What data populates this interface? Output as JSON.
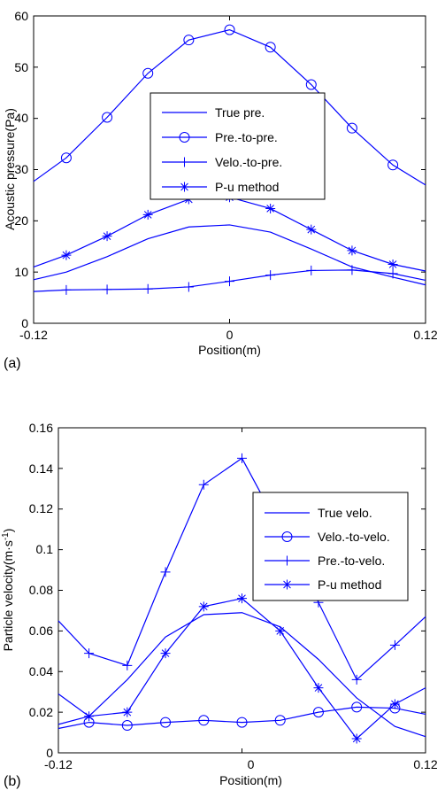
{
  "style": {
    "line_color": "#0000ff",
    "axis_color": "#000000"
  },
  "chart_data": [
    {
      "type": "line",
      "panel_label": "(a)",
      "xlabel": "Position(m)",
      "ylabel": "Acoustic pressure(Pa)",
      "xlim": [
        -0.12,
        0.12
      ],
      "ylim": [
        0,
        60
      ],
      "x_ticks": [
        -0.12,
        0,
        0.12
      ],
      "x_tick_labels": [
        "-0.12",
        "0",
        "0.12"
      ],
      "y_ticks": [
        0,
        10,
        20,
        30,
        40,
        50,
        60
      ],
      "y_tick_labels": [
        "0",
        "10",
        "20",
        "30",
        "40",
        "50",
        "60"
      ],
      "grid": false,
      "legend_position": "center",
      "series": [
        {
          "name": "True pre.",
          "marker": "none",
          "x": [
            -0.12,
            -0.1,
            -0.075,
            -0.05,
            -0.025,
            0,
            0.025,
            0.05,
            0.075,
            0.1,
            0.12
          ],
          "y": [
            8.5,
            10,
            13,
            16.5,
            18.8,
            19.2,
            17.8,
            14.5,
            11,
            9,
            7.5
          ]
        },
        {
          "name": "Pre.-to-pre.",
          "marker": "circle",
          "x": [
            -0.12,
            -0.1,
            -0.075,
            -0.05,
            -0.025,
            0,
            0.025,
            0.05,
            0.075,
            0.1,
            0.12
          ],
          "y": [
            27.7,
            32.3,
            40.2,
            48.8,
            55.3,
            57.3,
            53.9,
            46.6,
            38.1,
            30.9,
            27
          ]
        },
        {
          "name": "Velo.-to-pre.",
          "marker": "plus",
          "x": [
            -0.12,
            -0.1,
            -0.075,
            -0.05,
            -0.025,
            0,
            0.025,
            0.05,
            0.075,
            0.1,
            0.12
          ],
          "y": [
            6.2,
            6.5,
            6.6,
            6.7,
            7.1,
            8.2,
            9.4,
            10.3,
            10.4,
            9.7,
            8.4
          ]
        },
        {
          "name": "P-u method",
          "marker": "asterisk",
          "x": [
            -0.12,
            -0.1,
            -0.075,
            -0.05,
            -0.025,
            0,
            0.025,
            0.05,
            0.075,
            0.1,
            0.12
          ],
          "y": [
            11,
            13.3,
            17,
            21.2,
            24.2,
            24.6,
            22.4,
            18.3,
            14.2,
            11.5,
            10.2
          ]
        }
      ]
    },
    {
      "type": "line",
      "panel_label": "(b)",
      "xlabel": "Position(m)",
      "ylabel": "Particle velocity(m·s",
      "ylabel_sup": "-1",
      "ylabel_end": ")",
      "xlim": [
        -0.12,
        0.12
      ],
      "ylim": [
        0,
        0.16
      ],
      "x_ticks": [
        -0.12,
        0,
        0.12
      ],
      "x_tick_labels": [
        "-0.12",
        "0",
        "0.12"
      ],
      "y_ticks": [
        0,
        0.02,
        0.04,
        0.06,
        0.08,
        0.1,
        0.12,
        0.14,
        0.16
      ],
      "y_tick_labels": [
        "0",
        "0.02",
        "0.04",
        "0.06",
        "0.08",
        "0.1",
        "0.12",
        "0.14",
        "0.16"
      ],
      "grid": false,
      "legend_position": "top-right",
      "series": [
        {
          "name": "True velo.",
          "marker": "none",
          "x": [
            -0.12,
            -0.1,
            -0.075,
            -0.05,
            -0.025,
            0,
            0.025,
            0.05,
            0.075,
            0.1,
            0.12
          ],
          "y": [
            0.029,
            0.018,
            0.036,
            0.057,
            0.068,
            0.069,
            0.062,
            0.046,
            0.027,
            0.013,
            0.008
          ]
        },
        {
          "name": "Velo.-to-velo.",
          "marker": "circle",
          "x": [
            -0.12,
            -0.1,
            -0.075,
            -0.05,
            -0.025,
            0,
            0.025,
            0.05,
            0.075,
            0.1,
            0.12
          ],
          "y": [
            0.012,
            0.015,
            0.0135,
            0.015,
            0.016,
            0.015,
            0.016,
            0.02,
            0.0225,
            0.022,
            0.019
          ]
        },
        {
          "name": "Pre.-to-velo.",
          "marker": "plus",
          "x": [
            -0.12,
            -0.1,
            -0.075,
            -0.05,
            -0.025,
            0,
            0.025,
            0.05,
            0.075,
            0.1,
            0.12
          ],
          "y": [
            0.065,
            0.049,
            0.043,
            0.089,
            0.132,
            0.145,
            0.11,
            0.074,
            0.036,
            0.053,
            0.067
          ]
        },
        {
          "name": "P-u method",
          "marker": "asterisk",
          "x": [
            -0.12,
            -0.1,
            -0.075,
            -0.05,
            -0.025,
            0,
            0.025,
            0.05,
            0.075,
            0.1,
            0.12
          ],
          "y": [
            0.014,
            0.018,
            0.02,
            0.049,
            0.072,
            0.076,
            0.06,
            0.032,
            0.007,
            0.024,
            0.032
          ]
        }
      ]
    }
  ]
}
